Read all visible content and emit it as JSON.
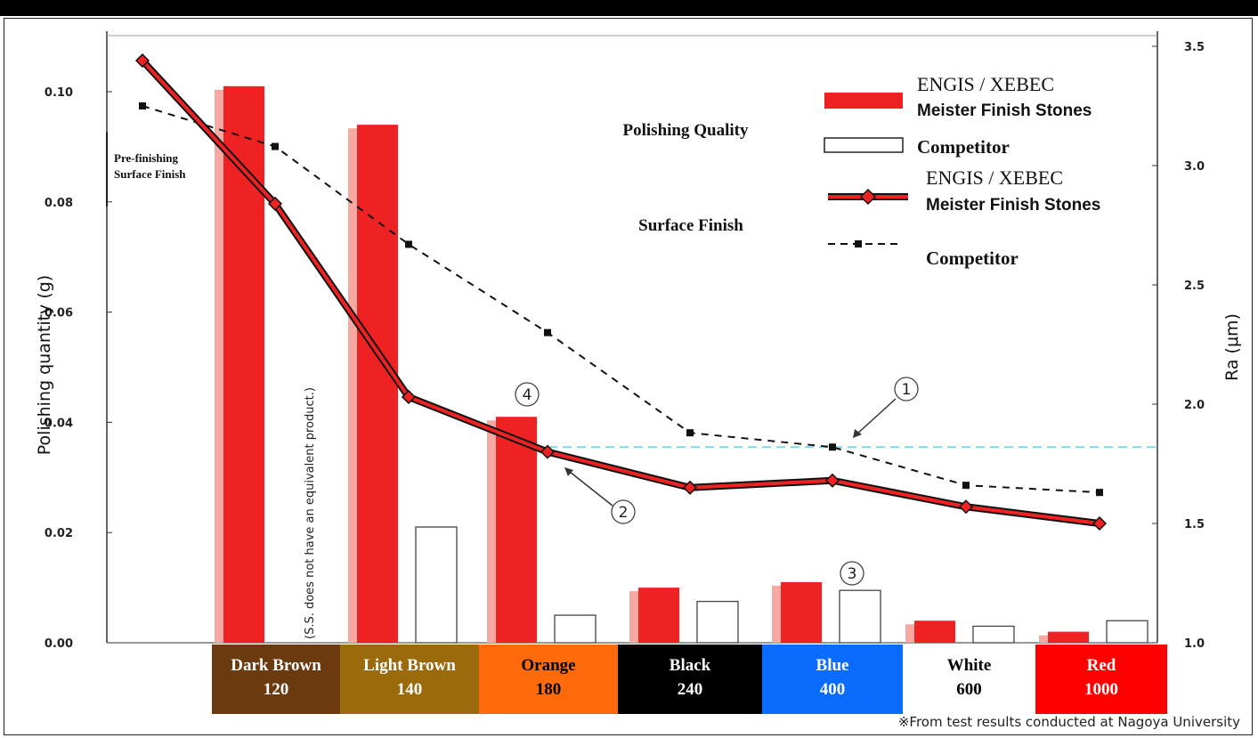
{
  "chart_data": {
    "type": "bar",
    "ylabel_left": "Polishing quantity (g)",
    "ylabel_right": "Ra (μm)",
    "ylim_left": [
      0,
      0.11
    ],
    "ylim_right": [
      1.0,
      3.5
    ],
    "left_ticks": [
      "0.00",
      "0.02",
      "0.04",
      "0.06",
      "0.08",
      "0.10"
    ],
    "right_ticks": [
      "1.0",
      "1.5",
      "2.0",
      "2.5",
      "3.0",
      "3.5"
    ],
    "categories": [
      {
        "name": "Dark Brown",
        "grit": "120",
        "color": "#6b3a0f",
        "text_color": "#ffffff"
      },
      {
        "name": "Light Brown",
        "grit": "140",
        "color": "#9b6a0a",
        "text_color": "#ffffff"
      },
      {
        "name": "Orange",
        "grit": "180",
        "color": "#ff6a0a",
        "text_color": "#000000"
      },
      {
        "name": "Black",
        "grit": "240",
        "color": "#000000",
        "text_color": "#ffffff"
      },
      {
        "name": "Blue",
        "grit": "400",
        "color": "#0a6cff",
        "text_color": "#ffffff"
      },
      {
        "name": "White",
        "grit": "600",
        "color": "#ffffff",
        "text_color": "#000000"
      },
      {
        "name": "Red",
        "grit": "1000",
        "color": "#ff0000",
        "text_color": "#ffffff"
      }
    ],
    "bar_series": [
      {
        "name": "ENGIS / XEBEC Meister Finish Stones",
        "values": [
          0.101,
          0.094,
          0.041,
          0.01,
          0.011,
          0.004,
          0.002
        ]
      },
      {
        "name": "Competitor",
        "values": [
          null,
          0.021,
          0.005,
          0.0075,
          0.0095,
          0.003,
          0.004
        ]
      }
    ],
    "line_series": [
      {
        "name": "ENGIS / XEBEC Meister Finish Stones",
        "x_index": [
          -1,
          0,
          1,
          2,
          3,
          4,
          5,
          6
        ],
        "values": [
          3.44,
          2.84,
          2.03,
          1.8,
          1.65,
          1.68,
          1.57,
          1.5
        ]
      },
      {
        "name": "Competitor",
        "x_index": [
          -1,
          0,
          1,
          2,
          3,
          4,
          5,
          6
        ],
        "values": [
          3.25,
          3.08,
          2.67,
          2.3,
          1.88,
          1.82,
          1.66,
          1.63
        ]
      }
    ],
    "reference_line_ra": 1.82,
    "colors": {
      "engis": "#ee2222",
      "engis_shadow": "#f7a8a0",
      "competitor_bar": "#ffffff",
      "ref_line": "#7fd6ee"
    }
  },
  "legend": {
    "bar_engis_line1": "ENGIS / XEBEC",
    "bar_engis_line2": "Meister Finish Stones",
    "bar_competitor": "Competitor",
    "line_engis_line1": "ENGIS / XEBEC",
    "line_engis_line2": "Meister Finish Stones",
    "line_competitor": "Competitor"
  },
  "annotations": {
    "polishing_quality": "Polishing Quality",
    "surface_finish": "Surface Finish",
    "pre_finishing_line1": "Pre-finishing",
    "pre_finishing_line2": "Surface Finish",
    "ss_note": "(S.S. does not have an equivalent product.)",
    "marker_1": "1",
    "marker_2": "2",
    "marker_3": "3",
    "marker_4": "4"
  },
  "source_note": "※From test results conducted at Nagoya University"
}
